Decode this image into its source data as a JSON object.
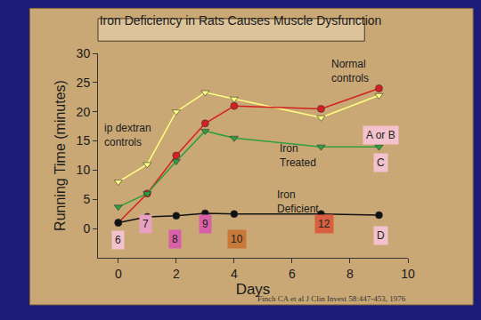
{
  "chart_data": {
    "type": "line",
    "title": "Iron Deficiency in Rats Causes Muscle Dysfunction",
    "x_label": "Days",
    "y_label": "Running Time (minutes)",
    "source": "Finch CA et al J Clin Invest 58:447-453, 1976",
    "x": [
      0,
      1,
      2,
      3,
      4,
      7,
      9
    ],
    "series": [
      {
        "name": "ip dextran controls",
        "color": "#ffff80",
        "marker": "triangle-down",
        "values": [
          8,
          11,
          20,
          23.3,
          22.2,
          19,
          22.8
        ]
      },
      {
        "name": "Normal controls",
        "color": "#d42020",
        "marker": "circle",
        "values": [
          1,
          6,
          12.5,
          18,
          21,
          20.5,
          24
        ]
      },
      {
        "name": "Iron Treated",
        "color": "#2e9e3e",
        "marker": "triangle-down",
        "values": [
          3.7,
          6,
          11.5,
          16.7,
          15.5,
          14,
          14
        ]
      },
      {
        "name": "Iron Deficient",
        "color": "#111111",
        "marker": "circle",
        "values": [
          1,
          2,
          2.2,
          2.6,
          2.5,
          2.5,
          2.3
        ]
      }
    ],
    "annotations": [
      "A or B",
      "C",
      "D",
      "6",
      "7",
      "8",
      "9",
      "10",
      "12"
    ],
    "xlim": [
      -0.7,
      10
    ],
    "xticks": [
      0,
      2,
      4,
      6,
      8,
      10
    ],
    "ylim": [
      -5,
      30
    ],
    "yticks": [
      0,
      5,
      10,
      15,
      20,
      25,
      30
    ],
    "grid": false
  }
}
